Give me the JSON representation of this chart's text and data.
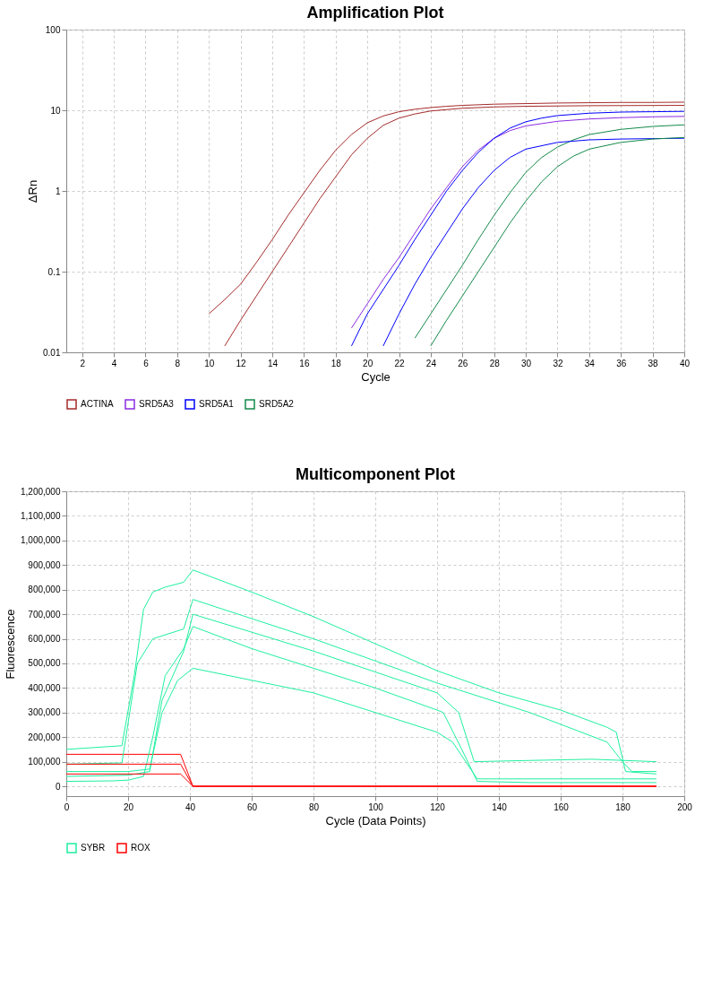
{
  "chart_data": [
    {
      "type": "line",
      "title": "Amplification Plot",
      "xlabel": "Cycle",
      "ylabel": "ΔRn",
      "log": "y",
      "grid": true,
      "legend": "bottom",
      "marker": "none",
      "line_style": "solid",
      "xlim": [
        1,
        40
      ],
      "xticks": [
        2,
        4,
        6,
        8,
        10,
        12,
        14,
        16,
        18,
        20,
        22,
        24,
        26,
        28,
        30,
        32,
        34,
        36,
        38,
        40
      ],
      "ylim": [
        0.01,
        100
      ],
      "yticks": [
        0.01,
        0.1,
        1,
        10,
        100
      ],
      "series": [
        {
          "name": "ACTINA",
          "color": "#a52a2a",
          "x": [
            10,
            11,
            12,
            13,
            14,
            15,
            16,
            17,
            18,
            19,
            20,
            21,
            22,
            23,
            24,
            25,
            26,
            28,
            30,
            32,
            34,
            36,
            38,
            40
          ],
          "values": [
            0.03,
            0.045,
            0.07,
            0.13,
            0.25,
            0.5,
            0.95,
            1.8,
            3.2,
            5,
            7,
            8.5,
            9.6,
            10.3,
            10.8,
            11.2,
            11.5,
            11.9,
            12.1,
            12.3,
            12.4,
            12.5,
            12.5,
            12.6
          ]
        },
        {
          "name": "SRD5A3",
          "color": "#8a2be2",
          "x": [
            19,
            20,
            21,
            22,
            23,
            24,
            25,
            26,
            27,
            28,
            29,
            30,
            32,
            34,
            36,
            38,
            40
          ],
          "values": [
            0.02,
            0.04,
            0.08,
            0.15,
            0.3,
            0.6,
            1.1,
            2,
            3.2,
            4.5,
            5.6,
            6.4,
            7.3,
            7.8,
            8.1,
            8.3,
            8.4
          ]
        },
        {
          "name": "SRD5A1",
          "color": "#0000ff",
          "x": [
            19,
            20,
            21,
            22,
            23,
            24,
            25,
            26,
            27,
            28,
            29,
            30,
            31,
            32,
            34,
            36,
            38,
            40
          ],
          "values": [
            0.012,
            0.03,
            0.06,
            0.12,
            0.25,
            0.5,
            1,
            1.8,
            3,
            4.5,
            6,
            7.2,
            8,
            8.6,
            9.2,
            9.5,
            9.6,
            9.7
          ]
        },
        {
          "name": "SRD5A2",
          "color": "#138a4a",
          "x": [
            23,
            24,
            25,
            26,
            27,
            28,
            29,
            30,
            31,
            32,
            33,
            34,
            36,
            38,
            40
          ],
          "values": [
            0.015,
            0.03,
            0.06,
            0.12,
            0.25,
            0.5,
            0.95,
            1.7,
            2.6,
            3.5,
            4.3,
            5,
            5.8,
            6.3,
            6.6
          ]
        },
        {
          "color": "#a52a2a",
          "x": [
            11,
            12,
            13,
            14,
            15,
            16,
            17,
            18,
            19,
            20,
            21,
            22,
            23,
            24,
            26,
            28,
            30,
            34,
            40
          ],
          "values": [
            0.012,
            0.025,
            0.05,
            0.1,
            0.2,
            0.4,
            0.8,
            1.5,
            2.8,
            4.5,
            6.5,
            8,
            9,
            9.8,
            10.6,
            11,
            11.2,
            11.4,
            11.5
          ]
        },
        {
          "color": "#0000ff",
          "x": [
            21,
            22,
            23,
            24,
            25,
            26,
            27,
            28,
            29,
            30,
            32,
            34,
            36,
            40
          ],
          "values": [
            0.012,
            0.03,
            0.07,
            0.15,
            0.3,
            0.6,
            1.1,
            1.8,
            2.6,
            3.3,
            4,
            4.3,
            4.4,
            4.5
          ]
        },
        {
          "color": "#138a4a",
          "x": [
            24,
            25,
            26,
            27,
            28,
            29,
            30,
            31,
            32,
            33,
            34,
            36,
            38,
            40
          ],
          "values": [
            0.012,
            0.025,
            0.05,
            0.1,
            0.2,
            0.4,
            0.75,
            1.3,
            2,
            2.7,
            3.3,
            4,
            4.4,
            4.6
          ]
        }
      ]
    },
    {
      "type": "line",
      "title": "Multicomponent Plot",
      "xlabel": "Cycle (Data Points)",
      "ylabel": "Fluorescence",
      "grid": true,
      "legend": "bottom",
      "marker": "none",
      "line_style": "solid",
      "xlim": [
        0,
        200
      ],
      "xticks": [
        0,
        20,
        40,
        60,
        80,
        100,
        120,
        140,
        160,
        180,
        200
      ],
      "ylim": [
        -40000,
        1200000
      ],
      "yticks": [
        0,
        {
          "value": 100000,
          "label": "100,000"
        },
        {
          "value": 200000,
          "label": "200,000"
        },
        {
          "value": 300000,
          "label": "300,000"
        },
        {
          "value": 400000,
          "label": "400,000"
        },
        {
          "value": 500000,
          "label": "500,000"
        },
        {
          "value": 600000,
          "label": "600,000"
        },
        {
          "value": 700000,
          "label": "700,000"
        },
        {
          "value": 800000,
          "label": "800,000"
        },
        {
          "value": 900000,
          "label": "900,000"
        },
        {
          "value": 1000000,
          "label": "1,000,000"
        },
        {
          "value": 1100000,
          "label": "1,100,000"
        },
        {
          "value": 1200000,
          "label": "1,200,000"
        }
      ],
      "series": [
        {
          "name": "SYBR",
          "color": "#1ef0a0",
          "x": [
            0,
            18,
            22,
            25,
            28,
            32,
            38,
            41,
            60,
            80,
            100,
            120,
            140,
            160,
            175,
            178,
            181,
            191
          ],
          "values": [
            150000,
            165000,
            450000,
            720000,
            790000,
            810000,
            830000,
            880000,
            790000,
            690000,
            580000,
            470000,
            380000,
            310000,
            240000,
            220000,
            60000,
            50000
          ]
        },
        {
          "name": "ROX",
          "color": "#ff0000",
          "x": [
            0,
            37,
            41,
            191
          ],
          "values": [
            130000,
            130000,
            0,
            0
          ]
        },
        {
          "color": "#1ef0a0",
          "x": [
            0,
            15,
            20,
            25,
            28,
            32,
            38,
            41,
            60,
            80,
            100,
            120,
            122,
            128,
            133,
            150,
            191
          ],
          "values": [
            20000,
            22000,
            25000,
            40000,
            200000,
            450000,
            560000,
            650000,
            560000,
            480000,
            400000,
            310000,
            300000,
            150000,
            20000,
            15000,
            15000
          ]
        },
        {
          "color": "#1ef0a0",
          "x": [
            0,
            20,
            27,
            31,
            36,
            41,
            80,
            120,
            125,
            133,
            191
          ],
          "values": [
            60000,
            60000,
            70000,
            300000,
            430000,
            480000,
            380000,
            220000,
            180000,
            30000,
            30000
          ]
        },
        {
          "color": "#1ef0a0",
          "x": [
            0,
            18,
            23,
            28,
            38,
            41,
            80,
            120,
            150,
            175,
            180,
            183,
            191
          ],
          "values": [
            90000,
            95000,
            500000,
            600000,
            640000,
            760000,
            600000,
            420000,
            300000,
            180000,
            100000,
            60000,
            60000
          ]
        },
        {
          "color": "#1ef0a0",
          "x": [
            0,
            20,
            27,
            31,
            38,
            41,
            80,
            120,
            127,
            132,
            150,
            170,
            191
          ],
          "values": [
            40000,
            45000,
            60000,
            350000,
            550000,
            700000,
            550000,
            380000,
            300000,
            100000,
            105000,
            110000,
            100000
          ]
        },
        {
          "color": "#ff0000",
          "x": [
            0,
            37,
            41,
            191
          ],
          "values": [
            50000,
            50000,
            0,
            0
          ]
        },
        {
          "color": "#ff0000",
          "x": [
            0,
            37,
            41,
            191
          ],
          "values": [
            90000,
            90000,
            0,
            0
          ]
        }
      ]
    }
  ]
}
